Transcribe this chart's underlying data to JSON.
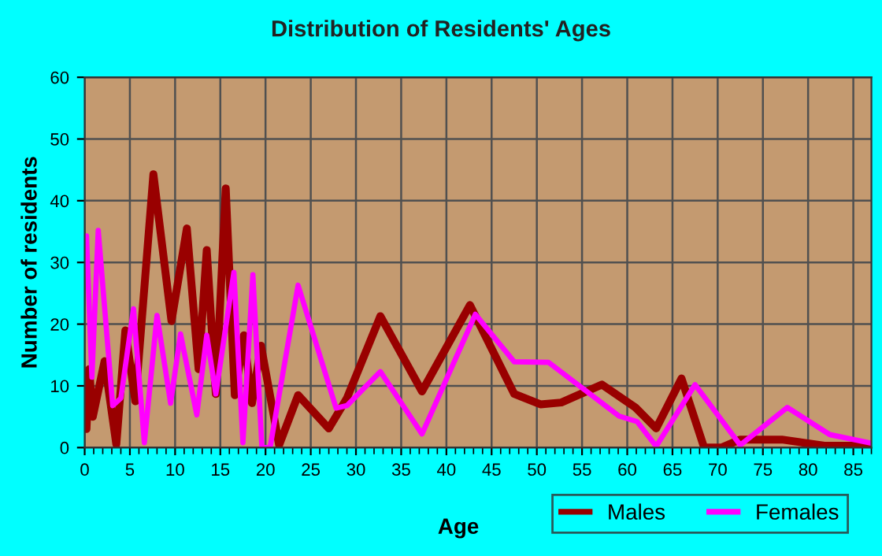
{
  "chart_data": {
    "type": "line",
    "title": "Distribution of Residents' Ages",
    "xlabel": "Age",
    "ylabel": "Number of residents",
    "xlim": [
      0,
      87
    ],
    "xticks": [
      0,
      5,
      10,
      15,
      20,
      25,
      30,
      35,
      40,
      45,
      50,
      55,
      60,
      65,
      70,
      75,
      80,
      85
    ],
    "ylim": [
      0,
      60
    ],
    "yticks": [
      0,
      10,
      20,
      30,
      40,
      50,
      60
    ],
    "grid": true,
    "legend": "bottom right",
    "series": [
      {
        "name": "Males",
        "color": "#990000",
        "x": [
          0.2,
          0.5,
          0.9,
          2.2,
          3.5,
          4.5,
          5.6,
          7.6,
          9.6,
          11.3,
          12.6,
          13.5,
          14.5,
          15.6,
          16.6,
          17.6,
          18.5,
          19.5,
          21.5,
          23.6,
          27,
          29,
          32.7,
          37.3,
          42.6,
          47.5,
          50.4,
          52.7,
          57.2,
          60.9,
          63.2,
          66,
          68.5,
          70.4,
          72.5,
          77.1,
          81.8,
          87
        ],
        "values": [
          3,
          12.7,
          5,
          14,
          0.5,
          19,
          7.5,
          44.3,
          20.5,
          35.5,
          12.7,
          32,
          8.7,
          42,
          8.5,
          18.2,
          7.2,
          16.5,
          0.4,
          8.5,
          3.1,
          8,
          21.3,
          9.1,
          23.1,
          8.7,
          7,
          7.3,
          10.2,
          6.5,
          3.1,
          11.2,
          0,
          0,
          1.3,
          1.3,
          0.3,
          0.3
        ]
      },
      {
        "name": "Females",
        "color": "#ff00ff",
        "x": [
          0.2,
          0.8,
          1.5,
          3.1,
          4,
          5.4,
          6.6,
          8,
          9.5,
          10.6,
          12.4,
          13.5,
          14.5,
          16.5,
          17.5,
          18.6,
          19.6,
          20.5,
          23.6,
          27.8,
          29,
          32.7,
          37.3,
          43.2,
          47.5,
          51.3,
          56.5,
          59.1,
          61.1,
          63.2,
          67.5,
          72.5,
          77.7,
          82.4,
          87
        ],
        "values": [
          34.3,
          11.4,
          35.2,
          6.8,
          8,
          22.5,
          0.8,
          21.4,
          7.2,
          18.4,
          5.3,
          18.2,
          8.7,
          28.4,
          0.8,
          28,
          0,
          0,
          26.3,
          6.4,
          6.8,
          12.3,
          2.2,
          21.6,
          13.9,
          13.8,
          8,
          5.1,
          4.2,
          0.2,
          10.2,
          0.4,
          6.5,
          2.1,
          0.7
        ]
      }
    ]
  }
}
